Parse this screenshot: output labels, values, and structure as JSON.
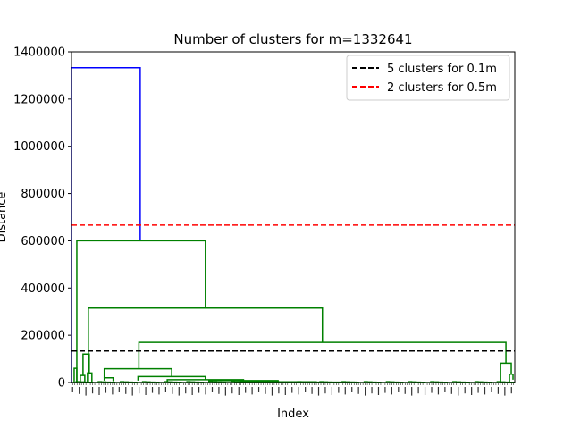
{
  "chart_data": {
    "type": "dendrogram",
    "title": "Number of clusters for m=1332641",
    "xlabel": "Index",
    "ylabel": "Distance",
    "ylim": [
      0,
      1400000
    ],
    "yticks": [
      0,
      200000,
      400000,
      600000,
      800000,
      1000000,
      1200000,
      1400000
    ],
    "ytick_labels": [
      "0",
      "200000",
      "400000",
      "600000",
      "800000",
      "1000000",
      "1200000",
      "1400000"
    ],
    "legend": {
      "placement": "top-right",
      "entries": [
        {
          "label": "5 clusters for 0.1m",
          "color": "#000000",
          "style": "dashed"
        },
        {
          "label": "2 clusters for 0.5m",
          "color": "#ff0000",
          "style": "dashed"
        }
      ]
    },
    "thresholds": [
      {
        "name": "5 clusters for 0.1m",
        "value": 133264,
        "color": "#000000"
      },
      {
        "name": "2 clusters for 0.5m",
        "value": 666320,
        "color": "#ff0000"
      }
    ],
    "link_colors": {
      "top": "#0000ff",
      "cluster": "#008000"
    },
    "leaf_count": 200,
    "merges": [
      {
        "color": "#0000ff",
        "height": 1332641,
        "left": {
          "x": 0.0,
          "h": 0
        },
        "right": {
          "x": 0.155,
          "h": 600000
        }
      },
      {
        "color": "#008000",
        "height": 600000,
        "left": {
          "x": 0.012,
          "h": 0
        },
        "right": {
          "x": 0.302,
          "h": 315000
        }
      },
      {
        "color": "#008000",
        "height": 315000,
        "left": {
          "x": 0.038,
          "h": 0
        },
        "right": {
          "x": 0.566,
          "h": 170000
        }
      },
      {
        "color": "#008000",
        "height": 170000,
        "left": {
          "x": 0.152,
          "h": 58000
        },
        "right": {
          "x": 0.98,
          "h": 82000
        }
      },
      {
        "color": "#008000",
        "height": 82000,
        "left": {
          "x": 0.968,
          "h": 0
        },
        "right": {
          "x": 0.992,
          "h": 35000
        }
      },
      {
        "color": "#008000",
        "height": 35000,
        "left": {
          "x": 0.988,
          "h": 0
        },
        "right": {
          "x": 0.996,
          "h": 12000
        }
      },
      {
        "color": "#008000",
        "height": 58000,
        "left": {
          "x": 0.074,
          "h": 20000
        },
        "right": {
          "x": 0.226,
          "h": 25000
        }
      },
      {
        "color": "#008000",
        "height": 25000,
        "left": {
          "x": 0.15,
          "h": 8000
        },
        "right": {
          "x": 0.302,
          "h": 12000
        }
      },
      {
        "color": "#008000",
        "height": 12000,
        "left": {
          "x": 0.216,
          "h": 5000
        },
        "right": {
          "x": 0.388,
          "h": 8000
        }
      },
      {
        "color": "#008000",
        "height": 8000,
        "left": {
          "x": 0.31,
          "h": 3000
        },
        "right": {
          "x": 0.466,
          "h": 3000
        }
      },
      {
        "color": "#008000",
        "height": 3000,
        "left": {
          "x": 0.38,
          "h": 0
        },
        "right": {
          "x": 0.552,
          "h": 1500
        }
      },
      {
        "color": "#008000",
        "height": 1500,
        "left": {
          "x": 0.46,
          "h": 0
        },
        "right": {
          "x": 0.644,
          "h": 0
        }
      },
      {
        "color": "#008000",
        "height": 20000,
        "left": {
          "x": 0.074,
          "h": 8000
        },
        "right": {
          "x": 0.094,
          "h": 5000
        }
      },
      {
        "color": "#008000",
        "height": 120000,
        "left": {
          "x": 0.026,
          "h": 30000
        },
        "right": {
          "x": 0.04,
          "h": 40000
        }
      },
      {
        "color": "#008000",
        "height": 60000,
        "left": {
          "x": 0.006,
          "h": 0
        },
        "right": {
          "x": 0.012,
          "h": 0
        }
      },
      {
        "color": "#008000",
        "height": 40000,
        "left": {
          "x": 0.036,
          "h": 0
        },
        "right": {
          "x": 0.046,
          "h": 0
        }
      },
      {
        "color": "#008000",
        "height": 30000,
        "left": {
          "x": 0.02,
          "h": 0
        },
        "right": {
          "x": 0.03,
          "h": 0
        }
      }
    ]
  }
}
